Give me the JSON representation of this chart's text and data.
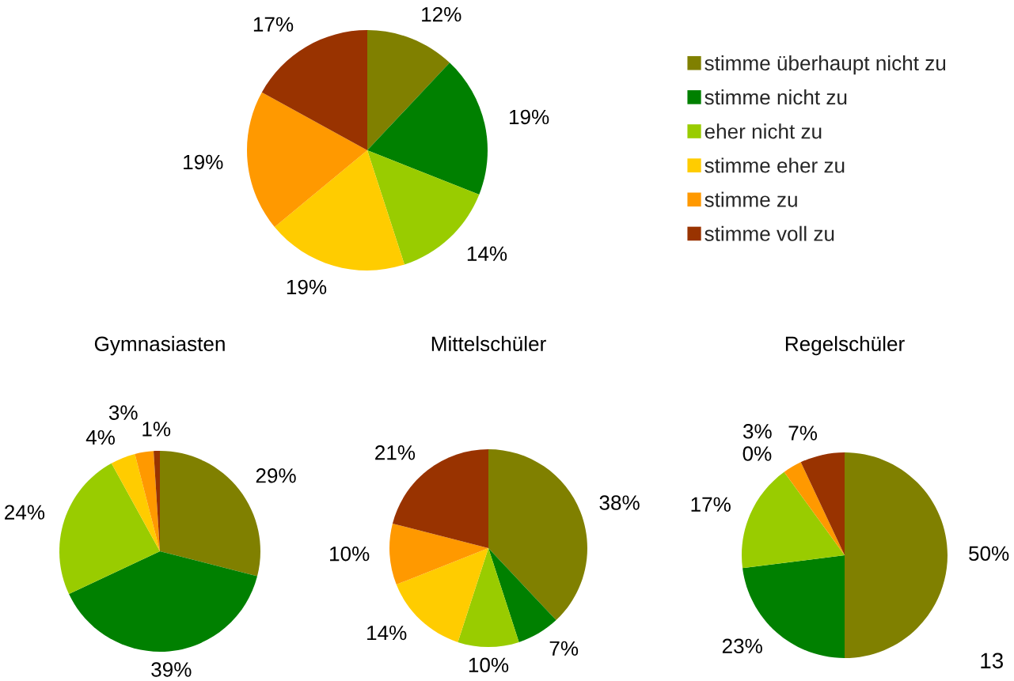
{
  "chart_data": [
    {
      "type": "pie",
      "categories": [
        "stimme überhaupt nicht zu",
        "stimme nicht zu",
        "eher nicht zu",
        "stimme eher zu",
        "stimme zu",
        "stimme voll zu"
      ],
      "values": [
        12,
        19,
        14,
        19,
        19,
        17
      ],
      "colors": [
        "#808000",
        "#008000",
        "#99cc00",
        "#ffcc00",
        "#ff9900",
        "#993300"
      ],
      "value_labels": [
        "12%",
        "19%",
        "14%",
        "19%",
        "19%",
        "17%"
      ],
      "legend": "right"
    },
    {
      "type": "pie",
      "title": "Gymnasiasten",
      "categories": [
        null,
        null,
        null,
        null,
        null,
        null
      ],
      "values": [
        29,
        39,
        24,
        4,
        3,
        1
      ],
      "colors": [
        "#808000",
        "#008000",
        "#99cc00",
        "#ffcc00",
        "#ff9900",
        "#993300"
      ],
      "value_labels": [
        "29%",
        "39%",
        "24%",
        "4%",
        "3%",
        "1%"
      ]
    },
    {
      "type": "pie",
      "title": "Mittelschüler",
      "categories": [
        null,
        null,
        null,
        null,
        null,
        null
      ],
      "values": [
        38,
        7,
        10,
        14,
        10,
        21
      ],
      "colors": [
        "#808000",
        "#008000",
        "#99cc00",
        "#ffcc00",
        "#ff9900",
        "#993300"
      ],
      "value_labels": [
        "38%",
        "7%",
        "10%",
        "14%",
        "10%",
        "21%"
      ]
    },
    {
      "type": "pie",
      "title": "Regelschüler",
      "categories": [
        null,
        null,
        null,
        null,
        null,
        null
      ],
      "values": [
        50,
        23,
        17,
        0,
        3,
        7
      ],
      "colors": [
        "#808000",
        "#008000",
        "#99cc00",
        "#ffcc00",
        "#ff9900",
        "#993300"
      ],
      "value_labels": [
        "50%",
        "23%",
        "17%",
        "0%",
        "3%",
        "7%"
      ],
      "annotations": [
        "13"
      ]
    }
  ]
}
